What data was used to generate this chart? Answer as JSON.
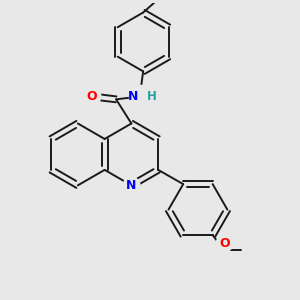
{
  "background_color": "#e8e8e8",
  "bond_color": "#1a1a1a",
  "N_color": "#0000ff",
  "O_color": "#ff0000",
  "H_color": "#2aa0a0",
  "figsize": [
    3.0,
    3.0
  ],
  "dpi": 100,
  "xlim": [
    0,
    10
  ],
  "ylim": [
    0,
    10
  ]
}
